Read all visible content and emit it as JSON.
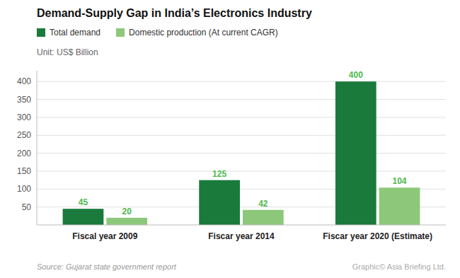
{
  "chart_data": {
    "type": "bar",
    "title": "Demand-Supply Gap in India’s Electronics Industry",
    "y_label": "Unit: US$ Billion",
    "annotations": [
      "Source: Gujarat state government report",
      "Graphic© Asia Briefing Ltd."
    ],
    "categories": [
      "Fiscal year 2009",
      "Fiscar year 2014",
      "Fiscar year 2020 (Estimate)"
    ],
    "series": [
      {
        "name": "Total demand",
        "color": "#1a7a3c",
        "values": [
          45,
          125,
          400
        ]
      },
      {
        "name": "Domestic production (At current CAGR)",
        "color": "#8dc87a",
        "values": [
          20,
          42,
          104
        ]
      }
    ],
    "ylim": [
      0,
      430
    ],
    "yticks": [
      50,
      100,
      150,
      200,
      250,
      300,
      350,
      400
    ],
    "grid": true,
    "legend": "top",
    "data_labels": true
  }
}
